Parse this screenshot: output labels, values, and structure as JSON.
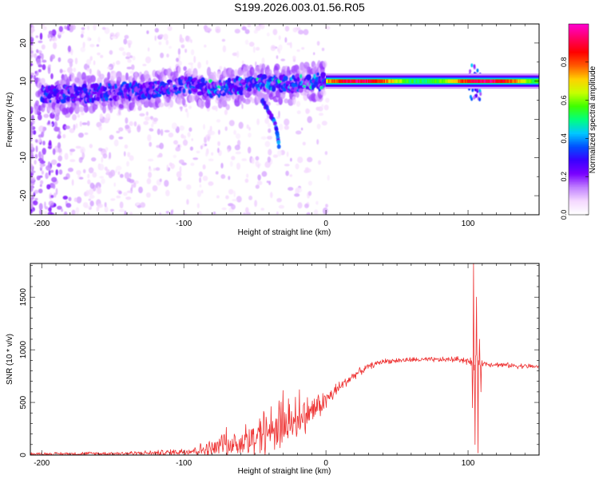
{
  "title": "S199.2026.003.01.56.R05",
  "chart_data": [
    {
      "type": "heatmap",
      "panel": "spectrogram",
      "xlabel": "Height of straight line (km)",
      "ylabel": "Frequency (Hz)",
      "xlim": [
        -208,
        150
      ],
      "ylim": [
        -25,
        25
      ],
      "x_ticks": [
        -200,
        -100,
        0,
        100
      ],
      "y_ticks": [
        -20,
        -10,
        0,
        10,
        20
      ],
      "colorbar": {
        "label": "Normalized spectral amplitude",
        "range": [
          0,
          1
        ],
        "ticks": [
          0.0,
          0.2,
          0.4,
          0.6,
          0.8
        ],
        "colormap": [
          "#ffffff",
          "#f4d8ff",
          "#c080ff",
          "#7a00ff",
          "#3a00ff",
          "#0050ff",
          "#00c8ff",
          "#00ff80",
          "#40ff00",
          "#c8ff00",
          "#ffd000",
          "#ff5a00",
          "#ff0000",
          "#ff0060",
          "#ff00c8"
        ]
      },
      "features": {
        "ridge": [
          {
            "x": -190,
            "f": 6.5
          },
          {
            "x": -160,
            "f": 7
          },
          {
            "x": -130,
            "f": 7.5
          },
          {
            "x": -100,
            "f": 9
          },
          {
            "x": -80,
            "f": 8
          },
          {
            "x": -60,
            "f": 9
          },
          {
            "x": -40,
            "f": 9.5
          },
          {
            "x": -25,
            "f": 9
          },
          {
            "x": -10,
            "f": 10
          },
          {
            "x": 0,
            "f": 10
          },
          {
            "x": 50,
            "f": 10
          },
          {
            "x": 90,
            "f": 10.5
          },
          {
            "x": 105,
            "f": 9.5
          },
          {
            "x": 150,
            "f": 10
          }
        ],
        "branch": [
          {
            "x": -45,
            "f": 5
          },
          {
            "x": -40,
            "f": 2
          },
          {
            "x": -35,
            "f": -2
          },
          {
            "x": -33,
            "f": -7
          }
        ],
        "strong_band_start_km": 0,
        "strong_band_frequency_hz": 10
      }
    },
    {
      "type": "line",
      "panel": "snr",
      "xlabel": "Height of straight line (km)",
      "ylabel": "SNR (10 * v/v)",
      "xlim": [
        -208,
        150
      ],
      "ylim": [
        0,
        1820
      ],
      "x_ticks": [
        -200,
        -100,
        0,
        100
      ],
      "y_ticks": [
        0,
        500,
        1000,
        1500
      ],
      "color": "#ee3333",
      "envelope": {
        "x": [
          -208,
          -150,
          -120,
          -110,
          -100,
          -90,
          -80,
          -70,
          -60,
          -50,
          -40,
          -30,
          -20,
          -10,
          0,
          10,
          20,
          30,
          40,
          60,
          80,
          95,
          100,
          103,
          104,
          106,
          108,
          110,
          120,
          130,
          150
        ],
        "base": [
          10,
          15,
          20,
          25,
          35,
          45,
          60,
          80,
          120,
          170,
          220,
          280,
          350,
          420,
          520,
          650,
          760,
          840,
          890,
          905,
          905,
          910,
          890,
          870,
          850,
          900,
          880,
          870,
          860,
          850,
          840
        ],
        "spread": [
          15,
          20,
          25,
          30,
          40,
          60,
          90,
          130,
          180,
          220,
          240,
          230,
          200,
          150,
          100,
          60,
          40,
          30,
          25,
          25,
          25,
          30,
          40,
          50,
          60,
          60,
          50,
          30,
          25,
          25,
          25
        ]
      },
      "spike": {
        "x": [
          103,
          104,
          105,
          106,
          107,
          108,
          109
        ],
        "values": [
          450,
          1820,
          100,
          1500,
          20,
          1100,
          600
        ]
      }
    }
  ]
}
